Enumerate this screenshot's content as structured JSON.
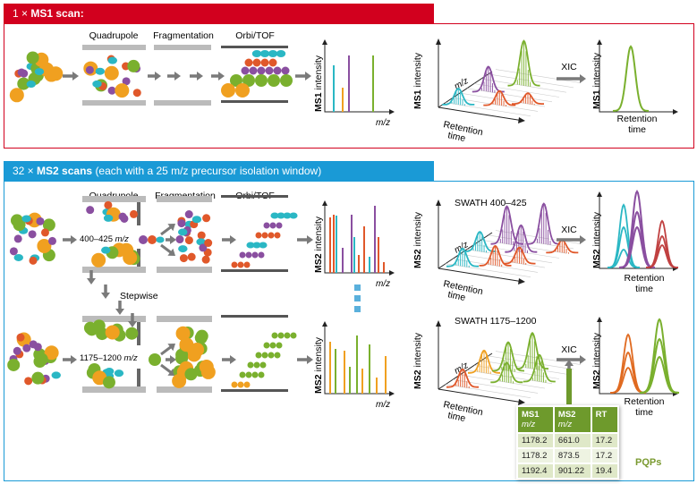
{
  "colors": {
    "red": "#d2001e",
    "blue": "#1a9ad6",
    "green": "#7ab02e",
    "orange": "#f0a020",
    "purple": "#8a4fa0",
    "teal": "#2ab7c4",
    "red_ion": "#e0582a",
    "table_green": "#6e9a2c",
    "arrow": "#7a7a7a"
  },
  "ms1": {
    "header_count": "1 ×",
    "header_bold": "MS1 scan:",
    "quadrupole": "Quadrupole",
    "fragmentation": "Fragmentation",
    "orbi": "Orbi/TOF",
    "y_axis_bold": "MS1",
    "y_axis": "intensity",
    "x_axis": "m/z",
    "rt1": "Retention",
    "rt2": "time",
    "mz3d": "m/z",
    "xic": "XIC"
  },
  "ms2": {
    "header_count": "32 ×",
    "header_bold": "MS2 scans",
    "header_rest": "(each with a 25 m/z precursor isolation window)",
    "quadrupole": "Quadrupole",
    "fragmentation": "Fragmentation",
    "orbi": "Orbi/TOF",
    "window_top": "400–425",
    "window_bottom": "1175–1200",
    "mz_unit": "m/z",
    "stepwise": "Stepwise",
    "y_axis_bold": "MS2",
    "y_axis": "intensity",
    "x_axis": "m/z",
    "swath_top": "SWATH 400–425",
    "swath_bottom": "SWATH 1175–1200",
    "rt1": "Retention",
    "rt2": "time",
    "mz3d": "m/z",
    "xic": "XIC"
  },
  "table": {
    "headers": [
      {
        "main": "MS1",
        "sub": "m/z"
      },
      {
        "main": "MS2",
        "sub": "m/z"
      },
      {
        "main": "RT",
        "sub": ""
      }
    ],
    "rows": [
      [
        "1178.2",
        "661.0",
        "17.2"
      ],
      [
        "1178.2",
        "873.5",
        "17.2"
      ],
      [
        "1192.4",
        "901.22",
        "19.4"
      ]
    ],
    "label": "PQPs"
  }
}
